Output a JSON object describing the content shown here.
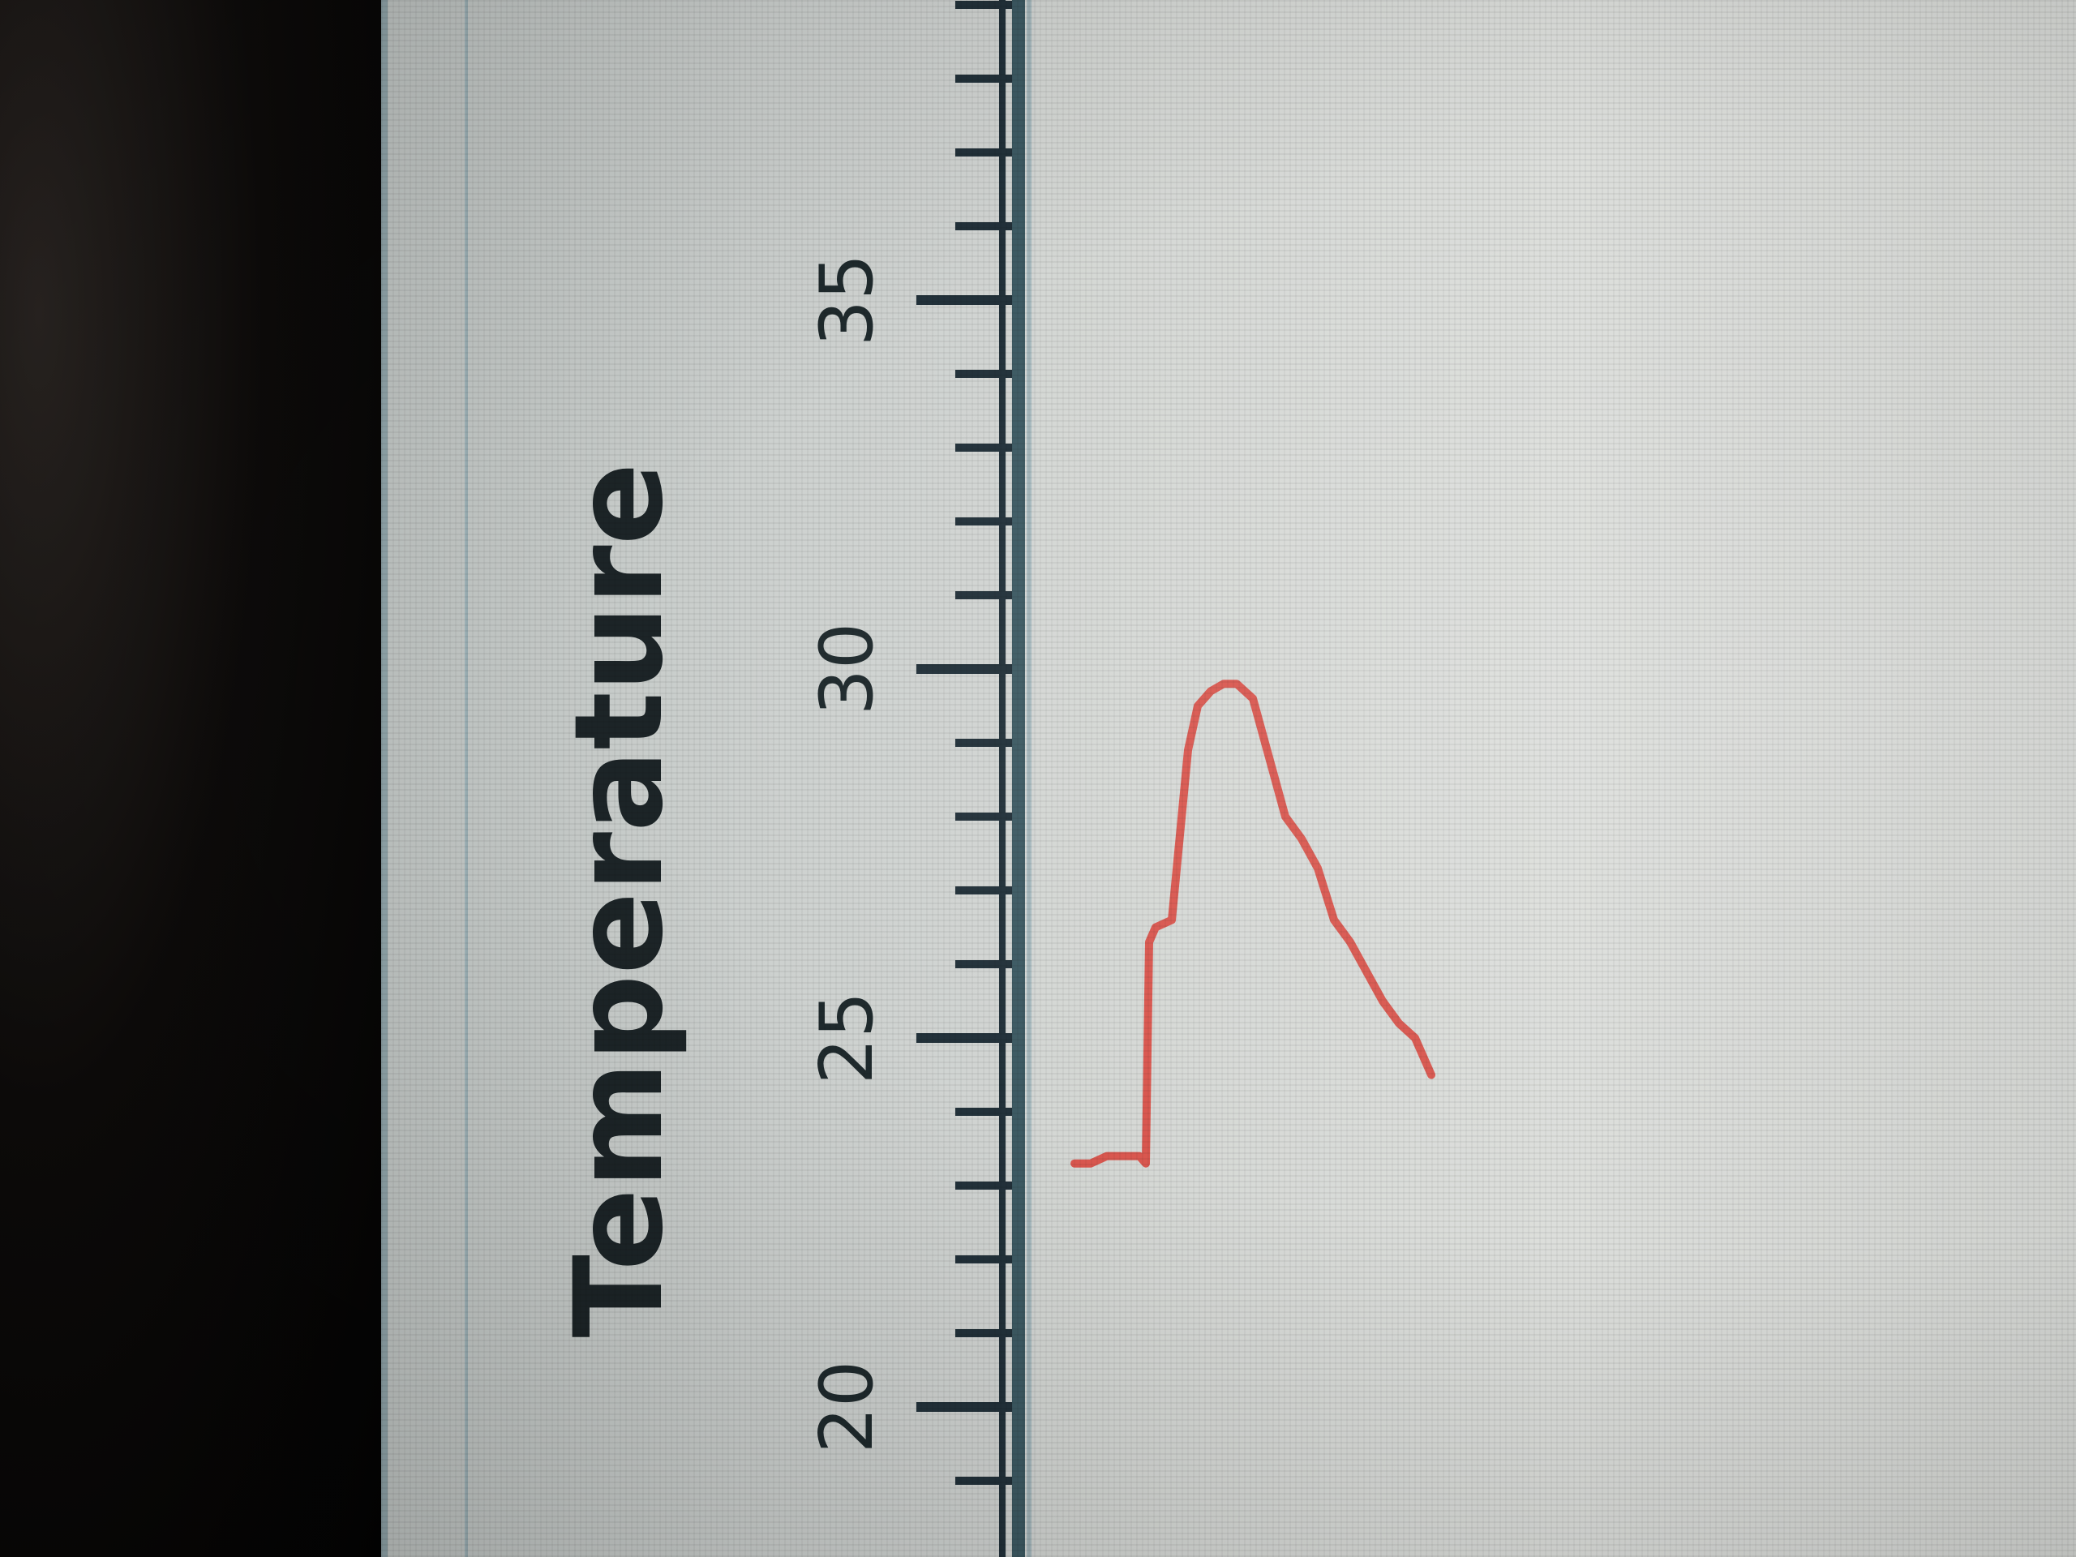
{
  "chart_data": {
    "type": "line",
    "title": "",
    "xlabel": "",
    "ylabel": "Temperature",
    "ylim": [
      19,
      39
    ],
    "y_ticks": [
      "20",
      "25",
      "30",
      "35"
    ],
    "series": [
      {
        "color": "#d9574f",
        "x": [
          0,
          0.5,
          1,
          1.5,
          2,
          2.2,
          2.3,
          2.5,
          3,
          3.5,
          3.8,
          4.2,
          4.6,
          5,
          5.5,
          6,
          6.5,
          7,
          7.5,
          8,
          8.5,
          9,
          9.5,
          10,
          10.5,
          11
        ],
        "y": [
          23.3,
          23.3,
          23.4,
          23.4,
          23.4,
          23.3,
          26.3,
          26.5,
          26.6,
          28.9,
          29.5,
          29.7,
          29.8,
          29.8,
          29.6,
          28.8,
          28.0,
          27.7,
          27.3,
          26.6,
          26.3,
          25.9,
          25.5,
          25.2,
          25.0,
          24.5
        ]
      }
    ]
  }
}
